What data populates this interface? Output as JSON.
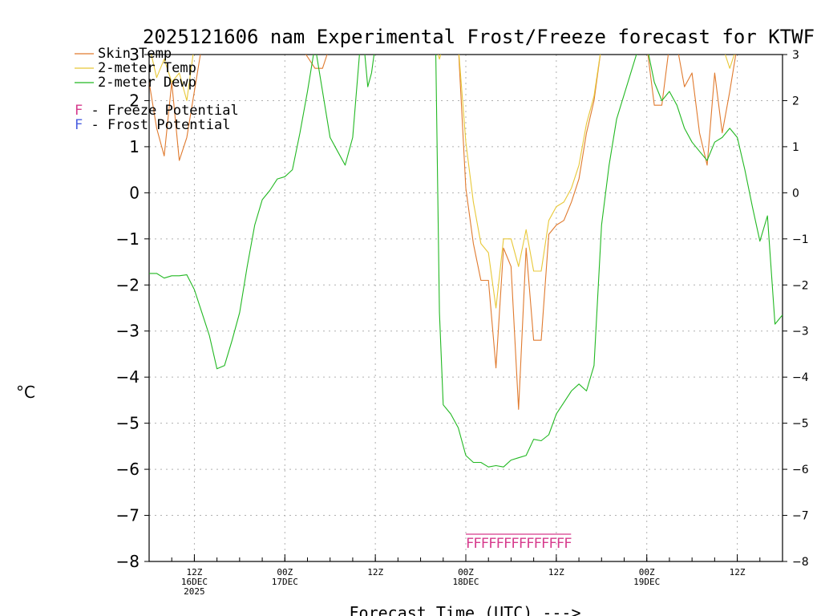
{
  "chart_data": {
    "type": "line",
    "title": "2025121606 nam Experimental Frost/Freeze forecast for KTWF",
    "xlabel": "Forecast Time (UTC) --->",
    "ylabel": "°C",
    "ylim": [
      -8,
      3
    ],
    "xlim": [
      6,
      90
    ],
    "grid": true,
    "y_ticks": [
      3,
      2,
      1,
      0,
      -1,
      -2,
      -3,
      -4,
      -5,
      -6,
      -7,
      -8
    ],
    "y_tick_labels": [
      "3",
      "2",
      "1",
      "0",
      "−1",
      "−2",
      "−3",
      "−4",
      "−5",
      "−6",
      "−7",
      "−8"
    ],
    "x_ticks": [
      {
        "t": 12,
        "lines": [
          "12Z",
          "16DEC",
          "2025"
        ]
      },
      {
        "t": 24,
        "lines": [
          "00Z",
          "17DEC"
        ]
      },
      {
        "t": 36,
        "lines": [
          "12Z"
        ]
      },
      {
        "t": 48,
        "lines": [
          "00Z",
          "18DEC"
        ]
      },
      {
        "t": 60,
        "lines": [
          "12Z"
        ]
      },
      {
        "t": 72,
        "lines": [
          "00Z",
          "19DEC"
        ]
      },
      {
        "t": 84,
        "lines": [
          "12Z"
        ]
      }
    ],
    "legend": [
      {
        "name": "Skin Temp",
        "color": "#e07a2e"
      },
      {
        "name": "2-meter Temp",
        "color": "#e8c838"
      },
      {
        "name": "2-meter Dewp",
        "color": "#22b822"
      }
    ],
    "markers_legend": [
      {
        "letter": "F",
        "text": " - Freeze Potential",
        "color": "#d63a8c"
      },
      {
        "letter": "F",
        "text": " - Frost Potential",
        "color": "#4a5ee0"
      }
    ],
    "freeze_marks": {
      "letter": "F",
      "color": "#d63a8c",
      "y": -7.6,
      "times": [
        48,
        49,
        50,
        51,
        52,
        53,
        54,
        55,
        56,
        57,
        58,
        59,
        60,
        61
      ]
    },
    "series": [
      {
        "name": "Skin Temp",
        "color": "#e07a2e",
        "x": [
          6,
          7,
          8,
          9,
          10,
          11,
          12,
          13,
          14,
          14.8,
          17.5,
          21,
          23,
          26,
          28,
          29,
          30,
          30.5,
          31,
          33,
          33.5,
          34,
          34.8,
          36,
          36.5,
          37,
          44,
          45,
          46,
          47,
          48,
          49,
          50,
          51,
          52,
          53,
          54,
          55,
          56,
          57,
          58,
          59,
          60,
          61,
          62,
          63,
          64,
          65,
          66,
          67,
          68,
          71,
          72,
          73,
          74,
          75,
          76,
          77,
          78,
          79,
          80,
          81,
          82,
          83,
          84,
          85,
          86,
          87,
          88,
          89,
          90
        ],
        "y": [
          2.4,
          1.4,
          0.8,
          2.4,
          0.7,
          1.2,
          2.2,
          3.2,
          3.2,
          3.2,
          3.2,
          3.2,
          3.2,
          3.2,
          2.7,
          2.7,
          3.2,
          3.2,
          3.2,
          3.2,
          3.2,
          3.2,
          3.2,
          3.2,
          3.2,
          3.2,
          3.2,
          3.2,
          3.2,
          3.2,
          0.1,
          -1.1,
          -1.9,
          -1.9,
          -3.8,
          -1.2,
          -1.6,
          -4.7,
          -1.2,
          -3.2,
          -3.2,
          -0.9,
          -0.7,
          -0.6,
          -0.2,
          0.3,
          1.3,
          2.0,
          3.2,
          3.2,
          3.2,
          3.2,
          3.2,
          1.9,
          1.9,
          3.2,
          3.2,
          2.3,
          2.6,
          1.3,
          0.6,
          2.6,
          1.3,
          2.2,
          3.2,
          3.2,
          3.2,
          3.2,
          3.2,
          3.2,
          3.2
        ]
      },
      {
        "name": "2-meter Temp",
        "color": "#e8c838",
        "x": [
          6,
          7,
          8,
          9,
          10,
          11,
          12,
          13,
          14,
          20,
          25,
          30,
          37,
          44,
          44.5,
          45,
          46,
          47,
          48,
          49,
          50,
          51,
          52,
          53,
          54,
          55,
          56,
          57,
          58,
          59,
          60,
          61,
          62,
          63,
          64,
          65,
          66,
          67,
          71,
          72,
          73,
          74,
          75,
          76,
          77,
          78,
          79,
          80,
          81,
          82,
          83,
          84,
          85,
          90
        ],
        "y": [
          3.2,
          2.5,
          2.9,
          2.4,
          2.6,
          2.0,
          3.2,
          3.2,
          3.2,
          3.2,
          3.2,
          3.2,
          3.2,
          3.2,
          2.9,
          3.2,
          3.2,
          3.2,
          1.1,
          -0.2,
          -1.1,
          -1.3,
          -2.5,
          -1.0,
          -1.0,
          -1.6,
          -0.8,
          -1.7,
          -1.7,
          -0.6,
          -0.3,
          -0.2,
          0.1,
          0.6,
          1.5,
          2.1,
          3.2,
          3.2,
          3.2,
          3.2,
          3.2,
          3.2,
          3.2,
          3.2,
          3.2,
          3.2,
          3.2,
          3.2,
          3.2,
          3.2,
          2.7,
          3.2,
          3.2,
          3.2
        ]
      },
      {
        "name": "2-meter Dewp",
        "color": "#22b822",
        "x": [
          6,
          7,
          8,
          9,
          10,
          11,
          12,
          13,
          14,
          15,
          16,
          17,
          18,
          19,
          20,
          21,
          22,
          23,
          24,
          25,
          26,
          27,
          28,
          29,
          30,
          31,
          32,
          33,
          34,
          34.5,
          35,
          35.5,
          36,
          36.2,
          44,
          44.5,
          45,
          46,
          47,
          48,
          49,
          50,
          51,
          52,
          53,
          54,
          55,
          56,
          57,
          58,
          59,
          60,
          61,
          62,
          63,
          64,
          65,
          66,
          67,
          68,
          71,
          72,
          73,
          74,
          75,
          76,
          77,
          78,
          79,
          80,
          81,
          82,
          83,
          84,
          85,
          86,
          87,
          88,
          89,
          90
        ],
        "y": [
          -1.75,
          -1.75,
          -1.85,
          -1.8,
          -1.8,
          -1.78,
          -2.1,
          -2.6,
          -3.1,
          -3.82,
          -3.75,
          -3.2,
          -2.6,
          -1.6,
          -0.7,
          -0.15,
          0.05,
          0.3,
          0.35,
          0.5,
          1.3,
          2.2,
          3.2,
          2.2,
          1.2,
          0.9,
          0.6,
          1.2,
          3.2,
          3.2,
          2.3,
          2.6,
          3.2,
          3.2,
          3.2,
          -2.6,
          -4.6,
          -4.8,
          -5.1,
          -5.7,
          -5.85,
          -5.85,
          -5.95,
          -5.92,
          -5.95,
          -5.8,
          -5.75,
          -5.7,
          -5.35,
          -5.38,
          -5.25,
          -4.8,
          -4.55,
          -4.3,
          -4.15,
          -4.3,
          -3.75,
          -0.7,
          0.6,
          1.6,
          3.2,
          3.2,
          2.4,
          2.0,
          2.2,
          1.9,
          1.4,
          1.1,
          0.9,
          0.7,
          1.1,
          1.2,
          1.4,
          1.2,
          0.5,
          -0.3,
          -1.05,
          -0.5,
          -2.85,
          -2.65
        ]
      }
    ]
  }
}
